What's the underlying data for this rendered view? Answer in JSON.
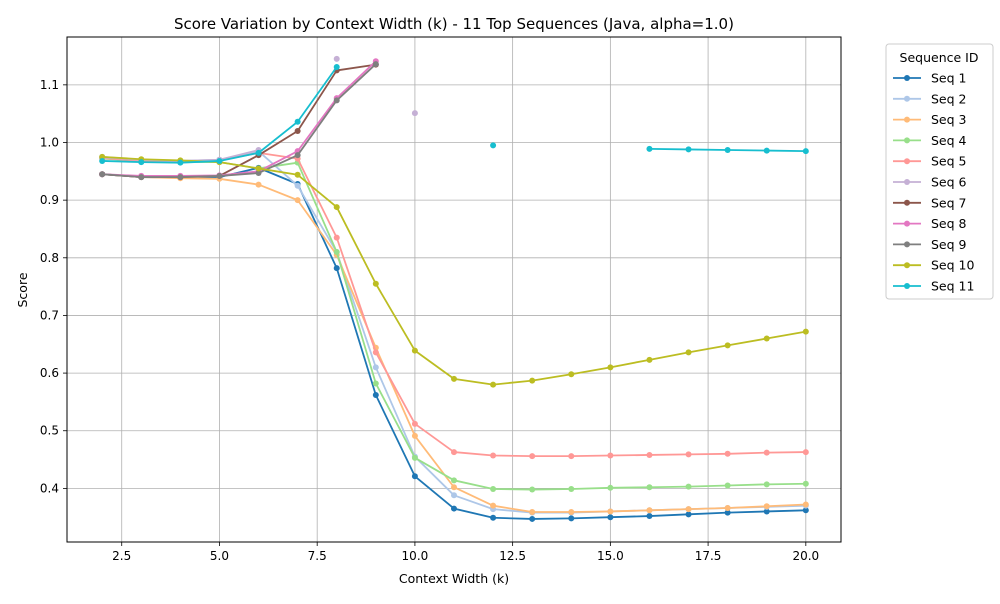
{
  "chart_data": {
    "type": "line",
    "title": "Score Variation by Context Width (k) - 11 Top Sequences (Java, alpha=1.0)",
    "xlabel": "Context Width (k)",
    "ylabel": "Score",
    "xlim": [
      1.1,
      20.9
    ],
    "ylim": [
      0.307,
      1.183
    ],
    "xticks": [
      2.5,
      5.0,
      7.5,
      10.0,
      12.5,
      15.0,
      17.5,
      20.0
    ],
    "yticks": [
      0.4,
      0.5,
      0.6,
      0.7,
      0.8,
      0.9,
      1.0,
      1.1
    ],
    "grid": true,
    "legend": {
      "title": "Sequence ID",
      "placement": "outside-upper-right"
    },
    "x": [
      2,
      3,
      4,
      5,
      6,
      7,
      8,
      9,
      10,
      11,
      12,
      13,
      14,
      15,
      16,
      17,
      18,
      19,
      20
    ],
    "series": [
      {
        "name": "Seq 1",
        "color": "#1f77b4",
        "values": [
          0.945,
          0.94,
          0.939,
          0.94,
          0.956,
          0.928,
          0.782,
          0.562,
          0.421,
          0.365,
          0.349,
          0.347,
          0.348,
          0.35,
          0.352,
          0.355,
          0.358,
          0.36,
          0.362
        ]
      },
      {
        "name": "Seq 2",
        "color": "#aec7e8",
        "values": [
          0.975,
          0.97,
          0.968,
          0.97,
          0.985,
          0.925,
          0.81,
          0.61,
          0.455,
          0.388,
          0.364,
          0.358,
          0.358,
          0.36,
          0.362,
          0.364,
          0.366,
          0.368,
          0.37
        ]
      },
      {
        "name": "Seq 3",
        "color": "#ffbb78",
        "values": [
          0.945,
          0.94,
          0.938,
          0.937,
          0.927,
          0.9,
          0.805,
          0.644,
          0.491,
          0.402,
          0.37,
          0.359,
          0.359,
          0.36,
          0.362,
          0.364,
          0.366,
          0.369,
          0.372
        ]
      },
      {
        "name": "Seq 4",
        "color": "#98df8a",
        "values": [
          0.972,
          0.968,
          0.966,
          0.966,
          0.955,
          0.965,
          0.81,
          0.582,
          0.453,
          0.414,
          0.399,
          0.398,
          0.399,
          0.401,
          0.402,
          0.403,
          0.405,
          0.407,
          0.408
        ]
      },
      {
        "name": "Seq 5",
        "color": "#ff9896",
        "values": [
          0.973,
          0.968,
          0.967,
          0.969,
          0.982,
          0.972,
          0.835,
          0.636,
          0.512,
          0.463,
          0.457,
          0.456,
          0.456,
          0.457,
          0.458,
          0.459,
          0.46,
          0.462,
          0.463
        ]
      },
      {
        "name": "Seq 6",
        "color": "#c5b0d5",
        "values": [
          0.974,
          0.97,
          0.968,
          0.97,
          0.987,
          null,
          1.145,
          null,
          1.051,
          null,
          null,
          null,
          null,
          null,
          null,
          null,
          null,
          null,
          null
        ]
      },
      {
        "name": "Seq 7",
        "color": "#8c564b",
        "values": [
          0.945,
          0.94,
          0.94,
          0.942,
          0.978,
          1.02,
          1.125,
          1.135,
          null,
          null,
          null,
          null,
          null,
          null,
          null,
          null,
          null,
          null,
          null
        ]
      },
      {
        "name": "Seq 8",
        "color": "#e377c2",
        "values": [
          0.945,
          0.942,
          0.942,
          0.943,
          0.95,
          0.985,
          1.077,
          1.141,
          null,
          null,
          null,
          null,
          null,
          null,
          null,
          null,
          null,
          null,
          null
        ]
      },
      {
        "name": "Seq 9",
        "color": "#7f7f7f",
        "values": [
          0.945,
          0.94,
          0.94,
          0.942,
          0.947,
          0.978,
          1.073,
          1.136,
          null,
          null,
          null,
          null,
          null,
          null,
          null,
          null,
          null,
          null,
          null
        ]
      },
      {
        "name": "Seq 10",
        "color": "#bcbd22",
        "values": [
          0.975,
          0.971,
          0.969,
          0.966,
          0.955,
          0.944,
          0.888,
          0.755,
          0.639,
          0.59,
          0.58,
          0.587,
          0.598,
          0.61,
          0.623,
          0.636,
          0.648,
          0.66,
          0.672
        ]
      },
      {
        "name": "Seq 11",
        "color": "#17becf",
        "values": [
          0.968,
          0.966,
          0.965,
          0.968,
          0.982,
          1.036,
          1.131,
          null,
          null,
          null,
          0.995,
          null,
          null,
          null,
          0.989,
          0.988,
          0.987,
          0.986,
          0.985
        ]
      }
    ]
  }
}
